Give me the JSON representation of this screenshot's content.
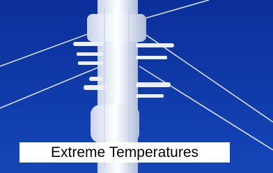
{
  "caption": "Extreme Temperatures"
}
